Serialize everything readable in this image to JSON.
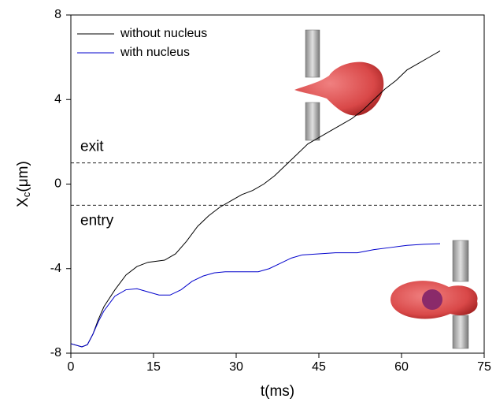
{
  "chart_data": {
    "type": "line",
    "x_label": "t(ms)",
    "y_label_parts": [
      "X",
      "c",
      "(μm)"
    ],
    "xlim": [
      0,
      75
    ],
    "xticks": [
      0,
      15,
      30,
      45,
      60,
      75
    ],
    "ylim": [
      -8,
      8
    ],
    "yticks": [
      -8,
      -4,
      0,
      4,
      8
    ],
    "legend": "upper left",
    "reference_lines": [
      {
        "y": 1,
        "label": "exit"
      },
      {
        "y": -1,
        "label": "entry"
      }
    ],
    "series": [
      {
        "name": "without nucleus",
        "color": "#000000",
        "x": [
          0,
          2,
          3,
          4,
          5,
          6,
          8,
          10,
          12,
          14,
          17,
          19,
          21,
          23,
          25,
          27,
          29,
          31,
          33,
          35,
          37,
          39,
          41,
          43,
          45,
          47,
          49,
          51,
          53,
          55,
          57,
          59,
          61,
          63,
          65,
          67
        ],
        "values": [
          -7.55,
          -7.7,
          -7.6,
          -7.1,
          -6.4,
          -5.8,
          -5.0,
          -4.3,
          -3.9,
          -3.7,
          -3.6,
          -3.3,
          -2.7,
          -2.0,
          -1.5,
          -1.1,
          -0.8,
          -0.5,
          -0.3,
          0,
          0.4,
          0.9,
          1.4,
          1.9,
          2.2,
          2.5,
          2.8,
          3.1,
          3.5,
          4.0,
          4.5,
          4.9,
          5.4,
          5.7,
          6.0,
          6.3
        ]
      },
      {
        "name": "with nucleus",
        "color": "#0000cc",
        "x": [
          0,
          2,
          3,
          4,
          5,
          6,
          8,
          10,
          12,
          14,
          16,
          18,
          20,
          22,
          24,
          26,
          28,
          30,
          32,
          34,
          36,
          38,
          40,
          42,
          45,
          48,
          52,
          55,
          58,
          61,
          64,
          67
        ],
        "values": [
          -7.55,
          -7.7,
          -7.6,
          -7.1,
          -6.5,
          -6.0,
          -5.3,
          -5.0,
          -4.95,
          -5.1,
          -5.25,
          -5.25,
          -5.0,
          -4.6,
          -4.35,
          -4.2,
          -4.15,
          -4.15,
          -4.15,
          -4.15,
          -4.0,
          -3.75,
          -3.5,
          -3.35,
          -3.3,
          -3.25,
          -3.25,
          -3.1,
          -3.0,
          -2.9,
          -2.85,
          -2.82
        ]
      }
    ]
  }
}
